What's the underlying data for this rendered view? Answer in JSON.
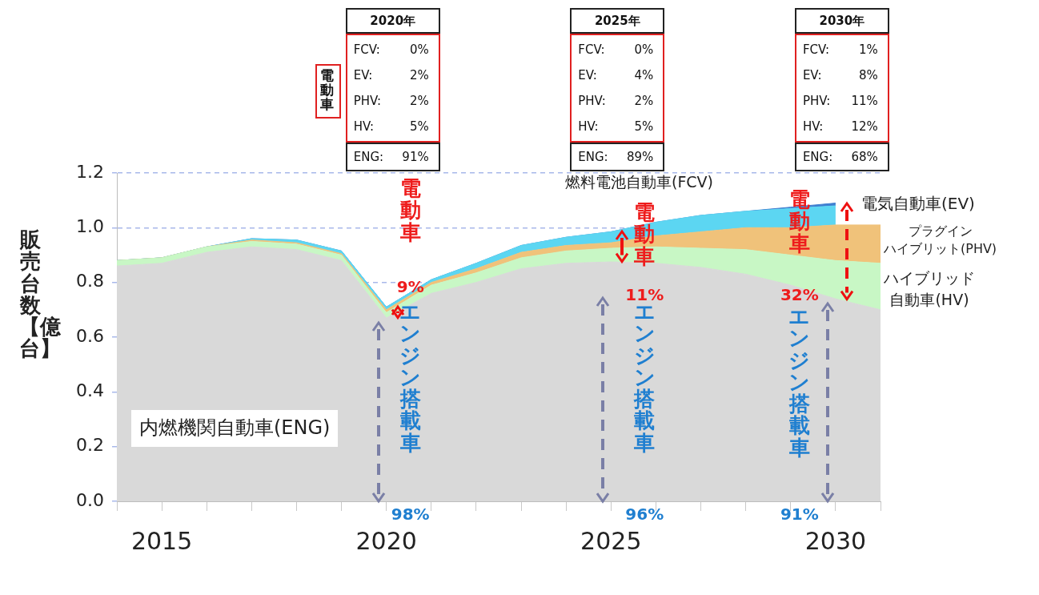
{
  "chart_data": {
    "type": "area",
    "stacked": true,
    "ylabel": "販売台数【億台】",
    "legend": false,
    "grid": "y",
    "x": [
      2014,
      2015,
      2016,
      2017,
      2018,
      2019,
      2020,
      2021,
      2022,
      2023,
      2024,
      2025,
      2026,
      2027,
      2028,
      2029,
      2030,
      2031
    ],
    "xlim": [
      2014,
      2031
    ],
    "xticks": [
      {
        "value": 2014,
        "label": null
      },
      2015,
      {
        "value": 2016,
        "label": null
      },
      {
        "value": 2017,
        "label": null
      },
      {
        "value": 2018,
        "label": null
      },
      {
        "value": 2019,
        "label": null
      },
      2020,
      {
        "value": 2021,
        "label": null
      },
      {
        "value": 2022,
        "label": null
      },
      {
        "value": 2023,
        "label": null
      },
      {
        "value": 2024,
        "label": null
      },
      2025,
      {
        "value": 2026,
        "label": null
      },
      {
        "value": 2027,
        "label": null
      },
      {
        "value": 2028,
        "label": null
      },
      {
        "value": 2029,
        "label": null
      },
      2030,
      {
        "value": 2031,
        "label": null
      }
    ],
    "ylim": [
      0,
      1.2
    ],
    "yticks": [
      {
        "value": 0,
        "label": "0.0"
      },
      {
        "value": 0.2,
        "label": "0.2"
      },
      {
        "value": 0.4,
        "label": "0.4"
      },
      {
        "value": 0.6,
        "label": "0.6"
      },
      {
        "value": 0.8,
        "label": "0.8"
      },
      {
        "value": 1,
        "label": "1.0"
      },
      {
        "value": 1.2,
        "label": "1.2"
      }
    ],
    "series": [
      {
        "name": "内燃機関自動車(ENG)",
        "color": "#d9d9d9",
        "values": [
          0.86,
          0.87,
          0.91,
          0.93,
          0.92,
          0.88,
          0.67,
          0.76,
          0.8,
          0.85,
          0.87,
          0.875,
          0.87,
          0.855,
          0.83,
          0.79,
          0.74,
          0.7
        ]
      },
      {
        "name": "ハイブリッド自動車(HV)",
        "color": "#c8f7c5",
        "values": [
          0.02,
          0.02,
          0.02,
          0.02,
          0.02,
          0.02,
          0.02,
          0.03,
          0.035,
          0.04,
          0.045,
          0.05,
          0.06,
          0.07,
          0.09,
          0.11,
          0.14,
          0.17
        ]
      },
      {
        "name": "プラグインハイブリット(PHV)",
        "color": "#f0c27a",
        "values": [
          0,
          0,
          0,
          0.005,
          0.005,
          0.005,
          0.01,
          0.01,
          0.015,
          0.02,
          0.02,
          0.02,
          0.04,
          0.06,
          0.08,
          0.1,
          0.13,
          0.14
        ]
      },
      {
        "name": "電気自動車(EV)",
        "color": "#5cd6f2",
        "values": [
          0,
          0,
          0,
          0.005,
          0.01,
          0.01,
          0.01,
          0.01,
          0.02,
          0.025,
          0.03,
          0.04,
          0.05,
          0.06,
          0.06,
          0.07,
          0.07,
          null
        ]
      },
      {
        "name": "燃料電池自動車(FCV)",
        "color": "#3f7fd0",
        "values": [
          0,
          0,
          0,
          0,
          0,
          0,
          0,
          0,
          0,
          0,
          0,
          0,
          0,
          0,
          0,
          0.005,
          0.01,
          null
        ]
      }
    ],
    "annotations": [
      "電動車",
      "2020年",
      "FCV:",
      "0%",
      "EV:",
      "2%",
      "PHV:",
      "2%",
      "HV:",
      "5%",
      "ENG:",
      "91%",
      "2025年",
      "FCV:",
      "0%",
      "EV:",
      "4%",
      "PHV:",
      "2%",
      "HV:",
      "5%",
      "ENG:",
      "89%",
      "2030年",
      "FCV:",
      "1%",
      "EV:",
      "8%",
      "PHV:",
      "11%",
      "HV:",
      "12%",
      "ENG:",
      "68%",
      "電動車",
      "9%",
      "エンジン搭載車",
      "98%",
      "電動車",
      "11%",
      "エンジン搭載車",
      "96%",
      "電動車",
      "32%",
      "エンジン搭載車",
      "91%"
    ]
  }
}
